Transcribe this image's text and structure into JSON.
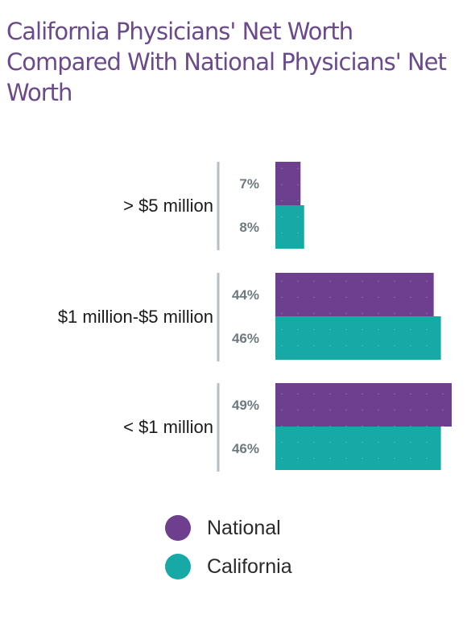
{
  "title": "California Physicians' Net Worth Compared With National Physicians' Net Worth",
  "colors": {
    "national": "#6e3f8e",
    "california": "#17a9a6",
    "divider": "#b7bfc3",
    "title": "#6b4a8c"
  },
  "chart_data": {
    "type": "bar",
    "orientation": "horizontal",
    "categories": [
      "> $5 million",
      "$1 million-$5 million",
      "< $1 million"
    ],
    "series": [
      {
        "name": "National",
        "values": [
          7,
          44,
          49
        ],
        "labels": [
          "7%",
          "44%",
          "49%"
        ]
      },
      {
        "name": "California",
        "values": [
          8,
          46,
          46
        ],
        "labels": [
          "8%",
          "46%",
          "46%"
        ]
      }
    ],
    "xlim": [
      0,
      100
    ],
    "grid": false,
    "legend": "bottom"
  },
  "legend": {
    "items": [
      {
        "label": "National",
        "color": "#6e3f8e"
      },
      {
        "label": "California",
        "color": "#17a9a6"
      }
    ]
  }
}
